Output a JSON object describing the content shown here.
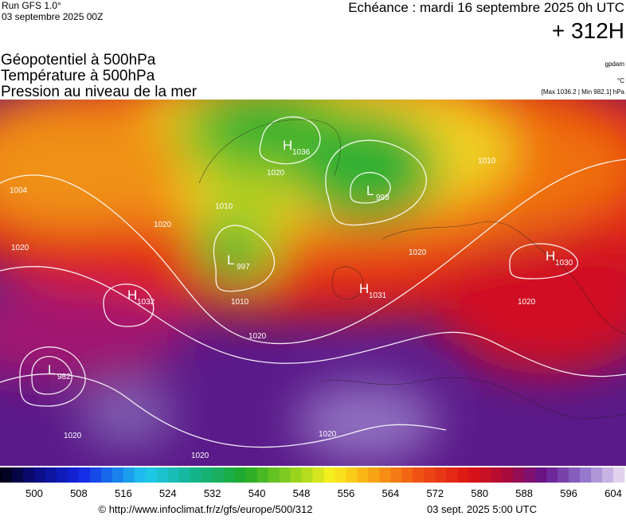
{
  "header": {
    "run": "Run GFS 1.0°",
    "run_date": "03 septembre 2025 00Z",
    "echeance": "Echéance : mardi 16 septembre 2025 0h UTC",
    "lead": "+ 312H"
  },
  "titles": [
    "Géopotentiel à 500hPa",
    "Température à 500hPa",
    "Pression au niveau de la mer"
  ],
  "notes": {
    "unit_geo": "gpdam",
    "unit_temp": "°C",
    "extremes": "[Max 1036.2 | Min 982.1] hPa"
  },
  "centers": [
    {
      "symbol": "H",
      "value": "1036"
    },
    {
      "symbol": "L",
      "value": "993"
    },
    {
      "symbol": "L",
      "value": "997"
    },
    {
      "symbol": "H",
      "value": "1030"
    },
    {
      "symbol": "H",
      "value": "1032"
    },
    {
      "symbol": "H",
      "value": "1031"
    },
    {
      "symbol": "L",
      "value": "982"
    }
  ],
  "isobar_labels": [
    "1004",
    "1020",
    "1020",
    "1010",
    "1020",
    "1010",
    "1020",
    "1020",
    "1020",
    "1020",
    "1010",
    "1020",
    "1020"
  ],
  "colorbar": {
    "ticks": [
      500,
      508,
      516,
      524,
      532,
      540,
      548,
      556,
      564,
      572,
      580,
      588,
      596,
      604
    ]
  },
  "footer": {
    "source": "© http://www.infoclimat.fr/z/gfs/europe/500/312",
    "generated": "03 sept. 2025  5:00 UTC"
  }
}
